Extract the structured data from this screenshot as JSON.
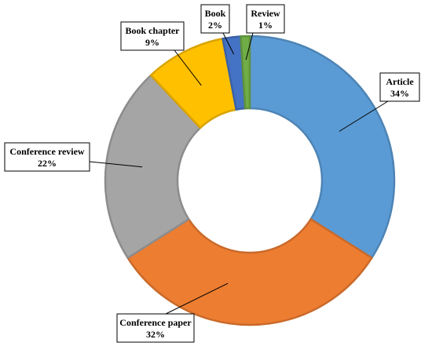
{
  "chart_data": {
    "type": "pie",
    "donut": true,
    "categories": [
      "Article",
      "Conference paper",
      "Conference review",
      "Book chapter",
      "Book",
      "Review"
    ],
    "values": [
      34,
      32,
      22,
      9,
      2,
      1
    ],
    "value_labels": [
      "34%",
      "32%",
      "22%",
      "9%",
      "2%",
      "1%"
    ],
    "colors": [
      "#5B9BD5",
      "#ED7D31",
      "#A5A5A5",
      "#FFC000",
      "#4472C4",
      "#70AD47"
    ],
    "title": "",
    "legend": "none (callout labels)"
  }
}
